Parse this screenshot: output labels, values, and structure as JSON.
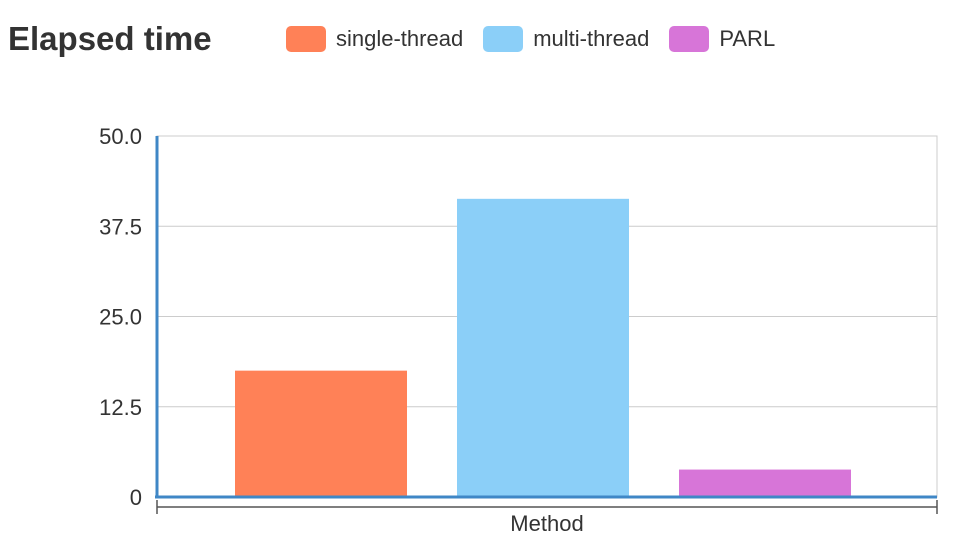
{
  "chart_data": {
    "type": "bar",
    "title": "Elapsed time",
    "xlabel": "Method",
    "ylabel": "",
    "ylim": [
      0,
      50
    ],
    "yticks": [
      "0",
      "12.5",
      "25.0",
      "37.5",
      "50.0"
    ],
    "ytick_values": [
      0,
      12.5,
      25,
      37.5,
      50
    ],
    "grid": true,
    "legend_position": "top",
    "categories": [
      "Method"
    ],
    "series": [
      {
        "name": "single-thread",
        "values": [
          17.5
        ],
        "color": "#ff8157"
      },
      {
        "name": "multi-thread",
        "values": [
          41.3
        ],
        "color": "#8bcff8"
      },
      {
        "name": "PARL",
        "values": [
          3.8
        ],
        "color": "#d775d8"
      }
    ]
  }
}
